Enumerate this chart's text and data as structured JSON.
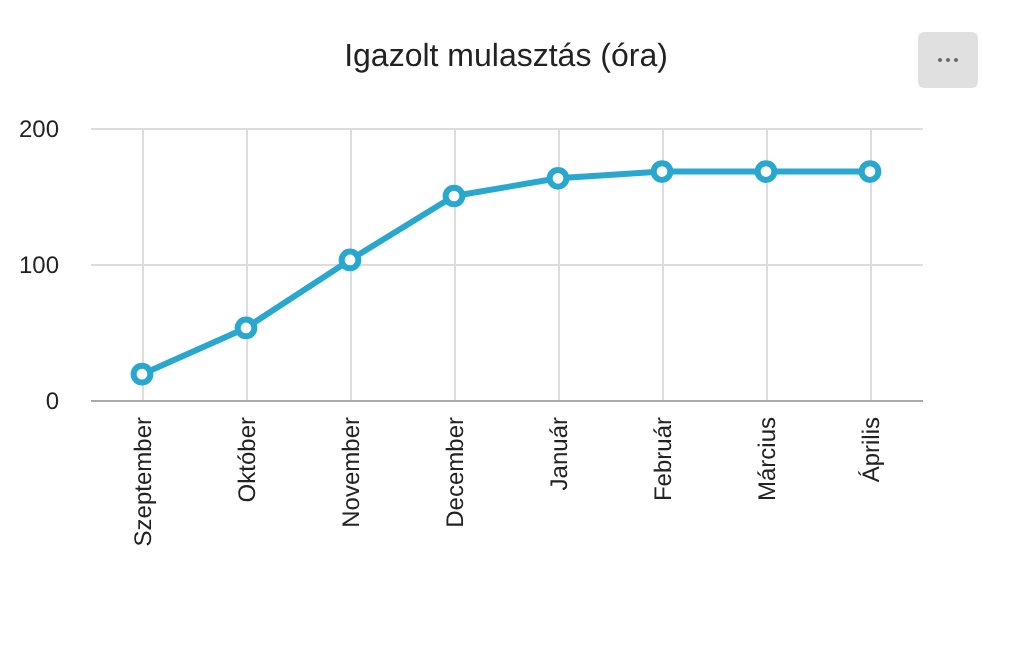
{
  "chart_data": {
    "type": "line",
    "title": "Igazolt mulasztás (óra)",
    "categories": [
      "Szeptember",
      "Október",
      "November",
      "December",
      "Január",
      "Február",
      "Március",
      "Április"
    ],
    "series": [
      {
        "color": "#29a8cf",
        "values": [
          19,
          53,
          103,
          150,
          163,
          168,
          168,
          168
        ]
      }
    ],
    "ylim": [
      0,
      200
    ],
    "yticks": [
      0,
      100,
      200
    ],
    "grid": true,
    "marker": "circle",
    "line_style": "solid",
    "legend": false
  }
}
